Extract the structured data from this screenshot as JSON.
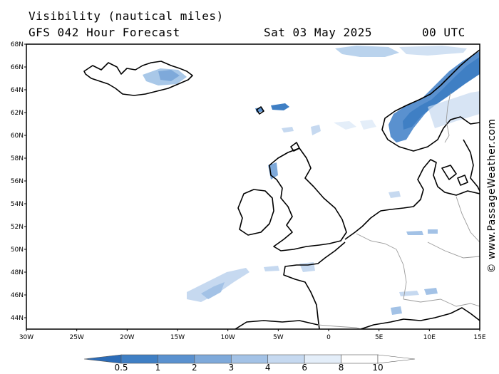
{
  "header": {
    "title": "Visibility (nautical miles)",
    "model": "GFS 042 Hour Forecast",
    "date": "Sat 03 May 2025",
    "time": "00 UTC"
  },
  "credit": "© www.PassageWeather.com",
  "map": {
    "lon_range": [
      -30,
      15
    ],
    "lat_range": [
      43,
      68
    ],
    "lat_ticks": [
      "44N",
      "46N",
      "48N",
      "50N",
      "52N",
      "54N",
      "56N",
      "58N",
      "60N",
      "62N",
      "64N",
      "66N",
      "68N"
    ],
    "lat_values": [
      44,
      46,
      48,
      50,
      52,
      54,
      56,
      58,
      60,
      62,
      64,
      66,
      68
    ],
    "lon_ticks": [
      "30W",
      "25W",
      "20W",
      "15W",
      "10W",
      "5W",
      "0",
      "5E",
      "10E",
      "15E"
    ],
    "lon_values": [
      -30,
      -25,
      -20,
      -15,
      -10,
      -5,
      0,
      5,
      10,
      15
    ],
    "colors": {
      "coast": "#000000",
      "border": "#9a9a9a"
    },
    "low_visibility_areas": [
      {
        "name": "norway-coast",
        "level": 1,
        "color": "#3f7fc4"
      },
      {
        "name": "norwegian-sea-north",
        "level": 4,
        "color": "#a9c8e8"
      },
      {
        "name": "faroe-patch",
        "level": 2,
        "color": "#5a91cf"
      },
      {
        "name": "iceland-inland",
        "level": 4,
        "color": "#a9c8e8"
      },
      {
        "name": "biscay-west",
        "level": 4,
        "color": "#b9d3ee"
      },
      {
        "name": "north-sea-scattered",
        "level": 6,
        "color": "#d4e4f5"
      }
    ]
  },
  "colorbar": {
    "labels": [
      "0.5",
      "1",
      "2",
      "3",
      "4",
      "6",
      "8",
      "10"
    ],
    "colors": [
      "#2b6cb8",
      "#3f7fc4",
      "#5a91cf",
      "#7ea9da",
      "#a3c2e6",
      "#c6d9f0",
      "#e4eef9",
      "#ffffff"
    ]
  }
}
